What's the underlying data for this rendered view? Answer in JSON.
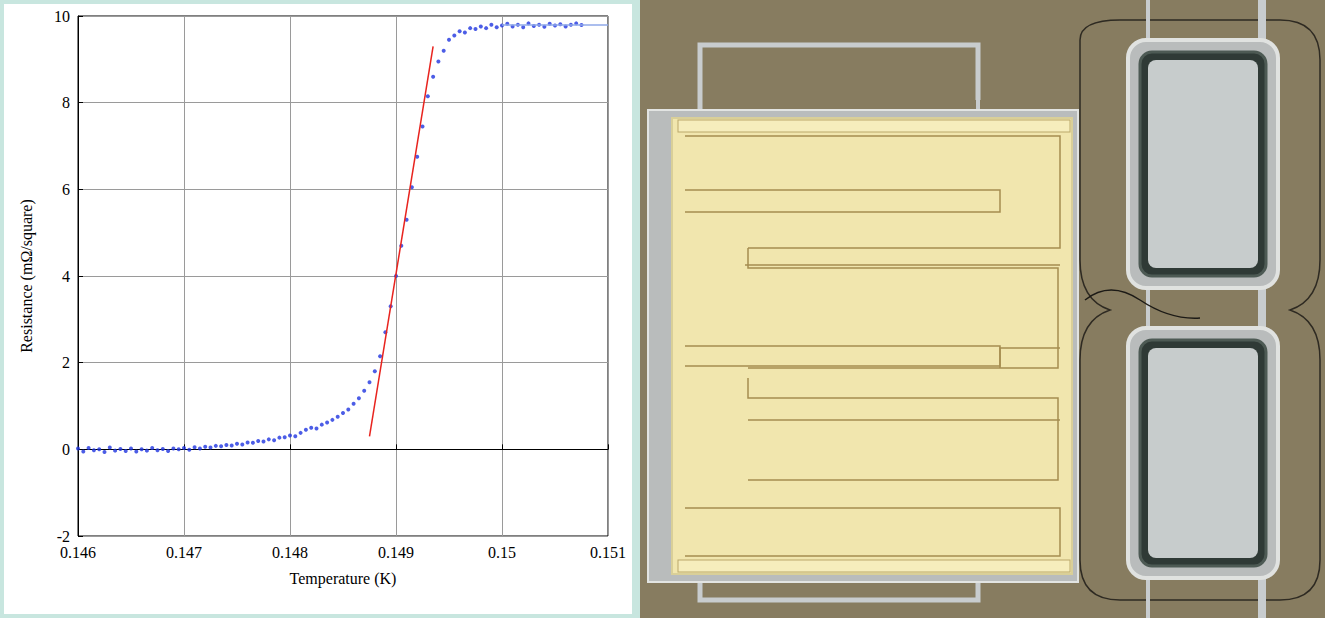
{
  "chart_data": {
    "type": "scatter",
    "x_label": "Temperature (K)",
    "y_label": "Resistance (mΩ/square)",
    "xlim": [
      0.146,
      0.151
    ],
    "xticks": [
      0.146,
      0.147,
      0.148,
      0.149,
      0.15,
      0.151
    ],
    "ylim": [
      -2,
      10
    ],
    "yticks": [
      -2,
      0,
      2,
      4,
      6,
      8,
      10
    ],
    "grid": true,
    "series": [
      {
        "type": "scatter",
        "color": "#1f35e0",
        "marker": "circle",
        "x": [
          0.146,
          0.14605,
          0.1461,
          0.14615,
          0.1462,
          0.14625,
          0.1463,
          0.14635,
          0.1464,
          0.14645,
          0.1465,
          0.14655,
          0.1466,
          0.14665,
          0.1467,
          0.14675,
          0.1468,
          0.14685,
          0.1469,
          0.14695,
          0.147,
          0.14705,
          0.1471,
          0.14715,
          0.1472,
          0.14725,
          0.1473,
          0.14735,
          0.1474,
          0.14745,
          0.1475,
          0.14755,
          0.1476,
          0.14765,
          0.1477,
          0.14775,
          0.1478,
          0.14785,
          0.1479,
          0.14795,
          0.148,
          0.14805,
          0.1481,
          0.14815,
          0.1482,
          0.14825,
          0.1483,
          0.14835,
          0.1484,
          0.14845,
          0.1485,
          0.14855,
          0.1486,
          0.14865,
          0.1487,
          0.14875,
          0.1488,
          0.14885,
          0.1489,
          0.14895,
          0.149,
          0.14905,
          0.1491,
          0.14915,
          0.1492,
          0.14925,
          0.1493,
          0.14935,
          0.1494,
          0.14945,
          0.1495,
          0.14955,
          0.1496,
          0.14965,
          0.1497,
          0.14975,
          0.1498,
          0.14985,
          0.1499,
          0.14995,
          0.15,
          0.15005,
          0.1501,
          0.15015,
          0.1502,
          0.15025,
          0.1503,
          0.15035,
          0.1504,
          0.15045,
          0.1505,
          0.15055,
          0.1506,
          0.15065,
          0.1507,
          0.15075
        ],
        "values": [
          0.02,
          -0.05,
          0.03,
          -0.02,
          0.0,
          -0.06,
          0.04,
          -0.03,
          0.01,
          -0.04,
          0.02,
          -0.05,
          0.0,
          -0.03,
          0.03,
          -0.02,
          0.01,
          -0.04,
          0.02,
          0.0,
          0.03,
          -0.01,
          0.05,
          0.02,
          0.06,
          0.04,
          0.08,
          0.07,
          0.1,
          0.09,
          0.13,
          0.11,
          0.16,
          0.15,
          0.19,
          0.18,
          0.23,
          0.21,
          0.27,
          0.28,
          0.32,
          0.3,
          0.38,
          0.45,
          0.5,
          0.48,
          0.57,
          0.62,
          0.68,
          0.75,
          0.84,
          0.92,
          1.05,
          1.18,
          1.35,
          1.55,
          1.8,
          2.15,
          2.7,
          3.3,
          4.0,
          4.7,
          5.3,
          6.05,
          6.75,
          7.45,
          8.15,
          8.6,
          8.95,
          9.2,
          9.45,
          9.55,
          9.65,
          9.62,
          9.72,
          9.7,
          9.76,
          9.72,
          9.8,
          9.74,
          9.78,
          9.82,
          9.76,
          9.8,
          9.74,
          9.83,
          9.77,
          9.8,
          9.75,
          9.82,
          9.78,
          9.81,
          9.76,
          9.8,
          9.83,
          9.79
        ]
      },
      {
        "type": "line",
        "color": "#8fa8e8",
        "line_style": "solid",
        "x": [
          0.15,
          0.151
        ],
        "values": [
          9.79,
          9.79
        ]
      },
      {
        "type": "line",
        "color": "#e8231e",
        "line_style": "solid",
        "x": [
          0.14875,
          0.14935
        ],
        "values": [
          0.3,
          9.3
        ]
      }
    ]
  }
}
